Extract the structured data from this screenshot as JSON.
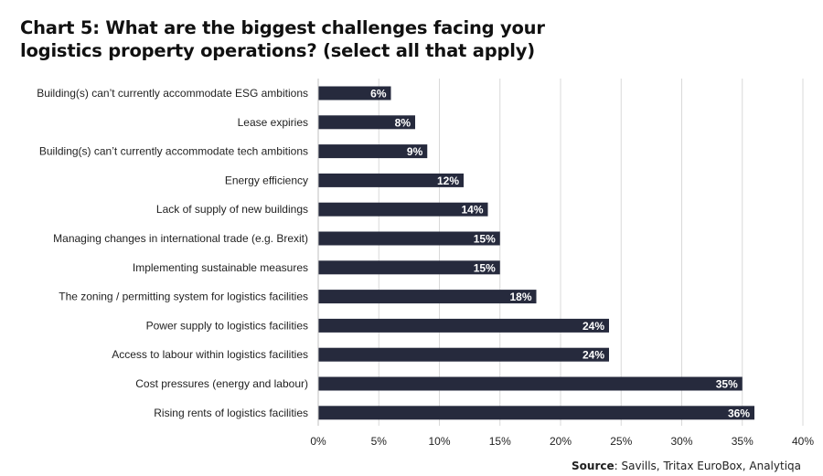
{
  "title": {
    "line1": "Chart 5: What are the biggest challenges facing your",
    "line2": "logistics property operations? (select all that apply)"
  },
  "source": {
    "label": "Source",
    "text": ": Savills, Tritax EuroBox, Analytiqa"
  },
  "colors": {
    "bar": "#262a3d",
    "grid": "#d9d9d9",
    "label_text": "#ffffff"
  },
  "chart_data": {
    "type": "bar",
    "orientation": "horizontal",
    "categories": [
      "Building(s) can’t currently accommodate ESG ambitions",
      "Lease expiries",
      "Building(s) can’t currently accommodate tech ambitions",
      "Energy efficiency",
      "Lack of supply of new buildings",
      "Managing changes in international trade (e.g. Brexit)",
      "Implementing sustainable measures",
      "The zoning / permitting system for logistics facilities",
      "Power supply to logistics facilities",
      "Access to labour within logistics facilities",
      "Cost pressures (energy and labour)",
      "Rising rents of logistics facilities"
    ],
    "values": [
      6,
      8,
      9,
      12,
      14,
      15,
      15,
      18,
      24,
      24,
      35,
      36
    ],
    "value_labels": [
      "6%",
      "8%",
      "9%",
      "12%",
      "14%",
      "15%",
      "15%",
      "18%",
      "24%",
      "24%",
      "35%",
      "36%"
    ],
    "xlim": [
      0,
      40
    ],
    "x_ticks": [
      0,
      5,
      10,
      15,
      20,
      25,
      30,
      35,
      40
    ],
    "x_tick_labels": [
      "0%",
      "5%",
      "10%",
      "15%",
      "20%",
      "25%",
      "30%",
      "35%",
      "40%"
    ],
    "grid": true,
    "legend": "none"
  }
}
